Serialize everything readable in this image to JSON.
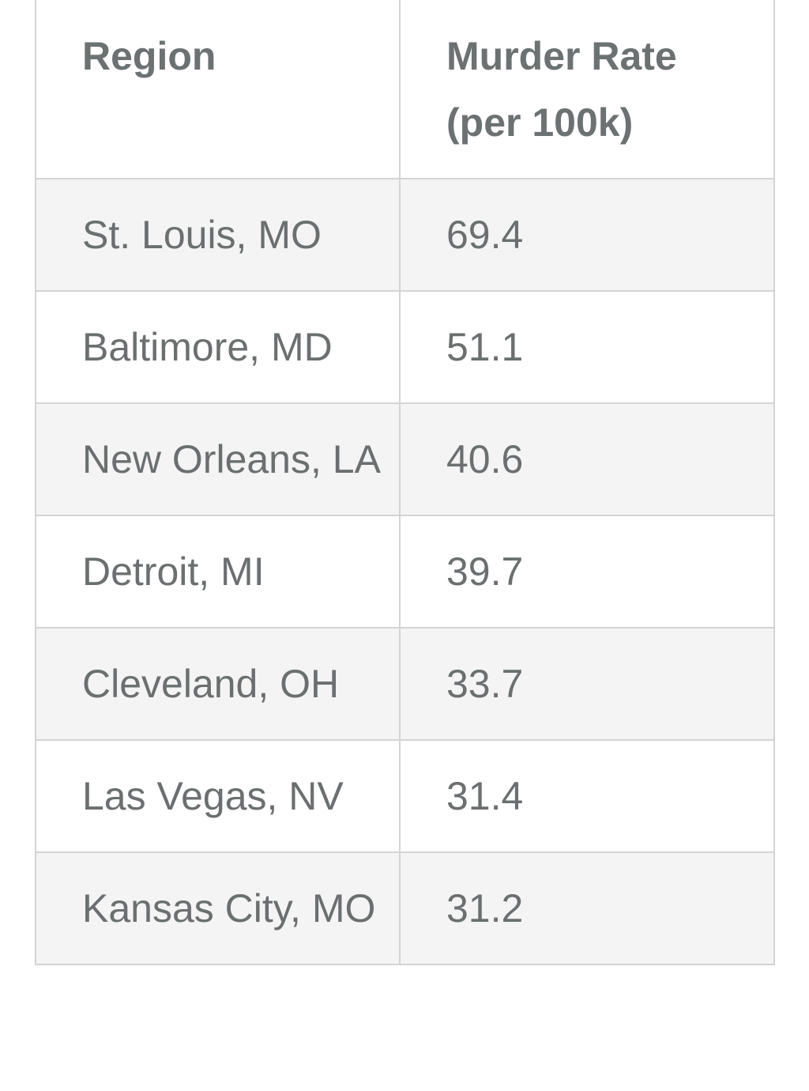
{
  "table": {
    "headers": [
      "Region",
      "Murder Rate (per 100k)"
    ],
    "rows": [
      {
        "region": "St. Louis, MO",
        "rate": "69.4"
      },
      {
        "region": "Baltimore, MD",
        "rate": "51.1"
      },
      {
        "region": "New Orleans, LA",
        "rate": "40.6"
      },
      {
        "region": "Detroit, MI",
        "rate": "39.7"
      },
      {
        "region": "Cleveland, OH",
        "rate": "33.7"
      },
      {
        "region": "Las Vegas, NV",
        "rate": "31.4"
      },
      {
        "region": "Kansas City, MO",
        "rate": "31.2"
      }
    ]
  },
  "colors": {
    "text": "#6b6f70",
    "border": "#d4d4d4",
    "stripe": "#f4f4f4"
  }
}
